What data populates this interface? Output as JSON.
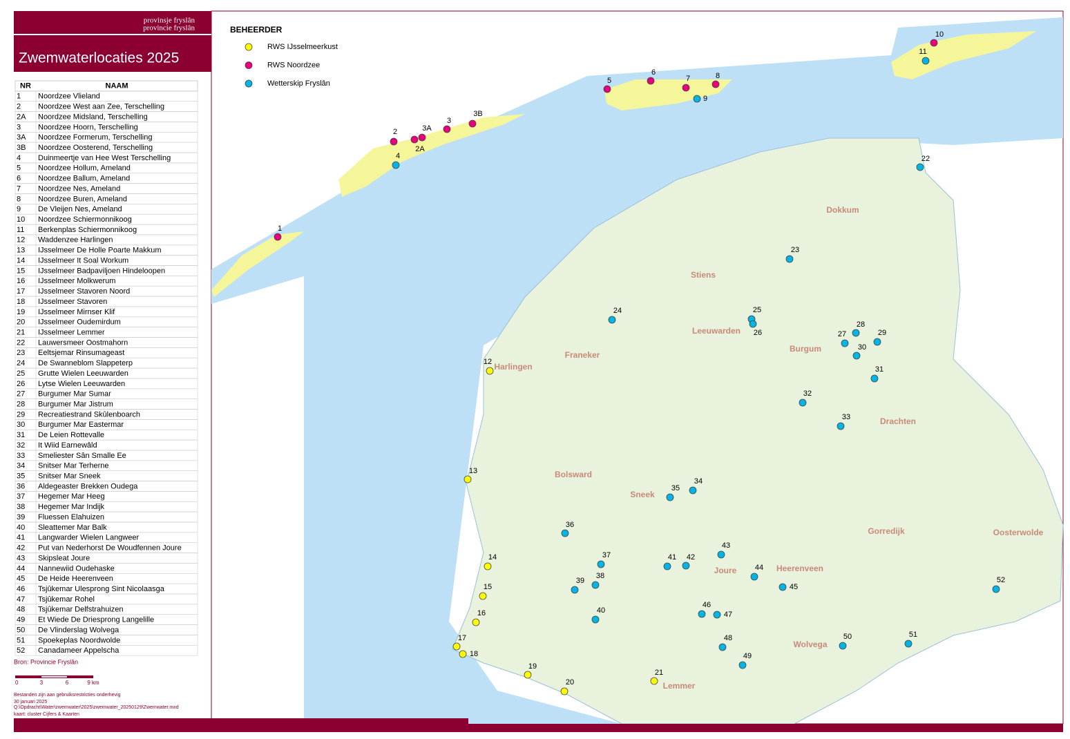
{
  "header": {
    "org": [
      "provinsje fryslân",
      "provincie fryslân"
    ],
    "title": "Zwemwaterlocaties 2025"
  },
  "table": {
    "columns": [
      "NR",
      "NAAM"
    ],
    "rows": [
      [
        "1",
        "Noordzee Vlieland"
      ],
      [
        "2",
        "Noordzee West aan Zee, Terschelling"
      ],
      [
        "2A",
        "Noordzee Midsland, Terschelling"
      ],
      [
        "3",
        "Noordzee Hoorn, Terschelling"
      ],
      [
        "3A",
        "Noordzee Formerum, Terschelling"
      ],
      [
        "3B",
        "Noordzee Oosterend, Terschelling"
      ],
      [
        "4",
        "Duinmeertje van Hee West Terschelling"
      ],
      [
        "5",
        "Noordzee Hollum, Ameland"
      ],
      [
        "6",
        "Noordzee Ballum, Ameland"
      ],
      [
        "7",
        "Noordzee Nes, Ameland"
      ],
      [
        "8",
        "Noordzee Buren, Ameland"
      ],
      [
        "9",
        "De Vleijen Nes, Ameland"
      ],
      [
        "10",
        "Noordzee Schiermonnikoog"
      ],
      [
        "11",
        "Berkenplas Schiermonnikoog"
      ],
      [
        "12",
        "Waddenzee Harlingen"
      ],
      [
        "13",
        "IJsselmeer De Holle Poarte Makkum"
      ],
      [
        "14",
        "IJsselmeer It Soal Workum"
      ],
      [
        "15",
        "IJsselmeer Badpaviljoen Hindeloopen"
      ],
      [
        "16",
        "IJsselmeer Molkwerum"
      ],
      [
        "17",
        "IJsselmeer Stavoren Noord"
      ],
      [
        "18",
        "IJsselmeer Stavoren"
      ],
      [
        "19",
        "IJsselmeer Mirnser Klif"
      ],
      [
        "20",
        "IJsselmeer Oudemirdum"
      ],
      [
        "21",
        "IJsselmeer Lemmer"
      ],
      [
        "22",
        "Lauwersmeer Oostmahorn"
      ],
      [
        "23",
        "Eeltsjemar Rinsumageast"
      ],
      [
        "24",
        "De Swanneblom Slappeterp"
      ],
      [
        "25",
        "Grutte Wielen Leeuwarden"
      ],
      [
        "26",
        "Lytse Wielen Leeuwarden"
      ],
      [
        "27",
        "Burgumer Mar Sumar"
      ],
      [
        "28",
        "Burgumer Mar Jistrum"
      ],
      [
        "29",
        "Recreatiestrand Skûlenboarch"
      ],
      [
        "30",
        "Burgumer Mar Eastermar"
      ],
      [
        "31",
        "De Leien Rottevalle"
      ],
      [
        "32",
        "It Wiid Earnewâld"
      ],
      [
        "33",
        "Smeliester Sân Smalle Ee"
      ],
      [
        "34",
        "Snitser Mar Terherne"
      ],
      [
        "35",
        "Snitser Mar Sneek"
      ],
      [
        "36",
        "Aldegeaster Brekken Oudega"
      ],
      [
        "37",
        "Hegemer Mar Heeg"
      ],
      [
        "38",
        "Hegemer Mar Indijk"
      ],
      [
        "39",
        "Fluessen Elahuizen"
      ],
      [
        "40",
        "Sleattemer Mar Balk"
      ],
      [
        "41",
        "Langwarder Wielen Langweer"
      ],
      [
        "42",
        "Put van Nederhorst De Woudfennen Joure"
      ],
      [
        "43",
        "Skipsleat Joure"
      ],
      [
        "44",
        "Nannewiid Oudehaske"
      ],
      [
        "45",
        "De Heide Heerenveen"
      ],
      [
        "46",
        "Tsjûkemar Ulesprong Sint Nicolaasga"
      ],
      [
        "47",
        "Tsjûkemar Rohel"
      ],
      [
        "48",
        "Tsjûkemar Delfstrahuizen"
      ],
      [
        "49",
        "Et Wiede De Driesprong Langelille"
      ],
      [
        "50",
        "De Vlinderslag Wolvega"
      ],
      [
        "51",
        "Spoekeplas Noordwolde"
      ],
      [
        "52",
        "Canadameer Appelscha"
      ]
    ]
  },
  "source": "Bron: Provincie Fryslân",
  "scale": [
    "0",
    "3",
    "6",
    "9 km"
  ],
  "notes": [
    "Bestanden zijn aan gebruiksrestricties onderhevig",
    "30 januari 2025",
    "Q:\\Opdracht\\Water\\zwemwater\\2025\\zwemwater_20250129\\Zwemwater.mxd",
    "kaart: cluster Cijfers & Kaarten"
  ],
  "legend": {
    "title": "BEHEERDER",
    "items": [
      {
        "label": "RWS IJsselmeerkust",
        "color": "#ffff00"
      },
      {
        "label": "RWS Noordzee",
        "color": "#e6007e"
      },
      {
        "label": "Wetterskip Fryslân",
        "color": "#00b4e6"
      }
    ]
  },
  "markers": [
    {
      "nr": "1",
      "beheerder": "RWS Noordzee"
    },
    {
      "nr": "2",
      "beheerder": "RWS Noordzee"
    },
    {
      "nr": "2A",
      "beheerder": "RWS Noordzee"
    },
    {
      "nr": "3A",
      "beheerder": "RWS Noordzee"
    },
    {
      "nr": "3",
      "beheerder": "RWS Noordzee"
    },
    {
      "nr": "3B",
      "beheerder": "RWS Noordzee"
    },
    {
      "nr": "4",
      "beheerder": "Wetterskip Fryslân"
    },
    {
      "nr": "5",
      "beheerder": "RWS Noordzee"
    },
    {
      "nr": "6",
      "beheerder": "RWS Noordzee"
    },
    {
      "nr": "7",
      "beheerder": "RWS Noordzee"
    },
    {
      "nr": "8",
      "beheerder": "RWS Noordzee"
    },
    {
      "nr": "9",
      "beheerder": "Wetterskip Fryslân"
    },
    {
      "nr": "10",
      "beheerder": "RWS Noordzee"
    },
    {
      "nr": "11",
      "beheerder": "Wetterskip Fryslân"
    },
    {
      "nr": "12",
      "beheerder": "RWS IJsselmeerkust"
    },
    {
      "nr": "13",
      "beheerder": "RWS IJsselmeerkust"
    },
    {
      "nr": "14",
      "beheerder": "RWS IJsselmeerkust"
    },
    {
      "nr": "15",
      "beheerder": "RWS IJsselmeerkust"
    },
    {
      "nr": "16",
      "beheerder": "RWS IJsselmeerkust"
    },
    {
      "nr": "17",
      "beheerder": "RWS IJsselmeerkust"
    },
    {
      "nr": "18",
      "beheerder": "RWS IJsselmeerkust"
    },
    {
      "nr": "19",
      "beheerder": "RWS IJsselmeerkust"
    },
    {
      "nr": "20",
      "beheerder": "RWS IJsselmeerkust"
    },
    {
      "nr": "21",
      "beheerder": "RWS IJsselmeerkust"
    },
    {
      "nr": "22",
      "beheerder": "Wetterskip Fryslân"
    },
    {
      "nr": "23",
      "beheerder": "Wetterskip Fryslân"
    },
    {
      "nr": "24",
      "beheerder": "Wetterskip Fryslân"
    },
    {
      "nr": "25",
      "beheerder": "Wetterskip Fryslân"
    },
    {
      "nr": "26",
      "beheerder": "Wetterskip Fryslân"
    },
    {
      "nr": "27",
      "beheerder": "Wetterskip Fryslân"
    },
    {
      "nr": "28",
      "beheerder": "Wetterskip Fryslân"
    },
    {
      "nr": "29",
      "beheerder": "Wetterskip Fryslân"
    },
    {
      "nr": "30",
      "beheerder": "Wetterskip Fryslân"
    },
    {
      "nr": "31",
      "beheerder": "Wetterskip Fryslân"
    },
    {
      "nr": "32",
      "beheerder": "Wetterskip Fryslân"
    },
    {
      "nr": "33",
      "beheerder": "Wetterskip Fryslân"
    },
    {
      "nr": "34",
      "beheerder": "Wetterskip Fryslân"
    },
    {
      "nr": "35",
      "beheerder": "Wetterskip Fryslân"
    },
    {
      "nr": "36",
      "beheerder": "Wetterskip Fryslân"
    },
    {
      "nr": "37",
      "beheerder": "Wetterskip Fryslân"
    },
    {
      "nr": "38",
      "beheerder": "Wetterskip Fryslân"
    },
    {
      "nr": "39",
      "beheerder": "Wetterskip Fryslân"
    },
    {
      "nr": "40",
      "beheerder": "Wetterskip Fryslân"
    },
    {
      "nr": "41",
      "beheerder": "Wetterskip Fryslân"
    },
    {
      "nr": "42",
      "beheerder": "Wetterskip Fryslân"
    },
    {
      "nr": "43",
      "beheerder": "Wetterskip Fryslân"
    },
    {
      "nr": "44",
      "beheerder": "Wetterskip Fryslân"
    },
    {
      "nr": "45",
      "beheerder": "Wetterskip Fryslân"
    },
    {
      "nr": "46",
      "beheerder": "Wetterskip Fryslân"
    },
    {
      "nr": "47",
      "beheerder": "Wetterskip Fryslân"
    },
    {
      "nr": "48",
      "beheerder": "Wetterskip Fryslân"
    },
    {
      "nr": "49",
      "beheerder": "Wetterskip Fryslân"
    },
    {
      "nr": "50",
      "beheerder": "Wetterskip Fryslân"
    },
    {
      "nr": "51",
      "beheerder": "Wetterskip Fryslân"
    },
    {
      "nr": "52",
      "beheerder": "Wetterskip Fryslân"
    }
  ],
  "places": [
    "Dokkum",
    "Stiens",
    "Leeuwarden",
    "Burgum",
    "Franeker",
    "Harlingen",
    "Drachten",
    "Bolsward",
    "Sneek",
    "Gorredijk",
    "Oosterwolde",
    "Joure",
    "Heerenveen",
    "Wolvega",
    "Lemmer"
  ]
}
